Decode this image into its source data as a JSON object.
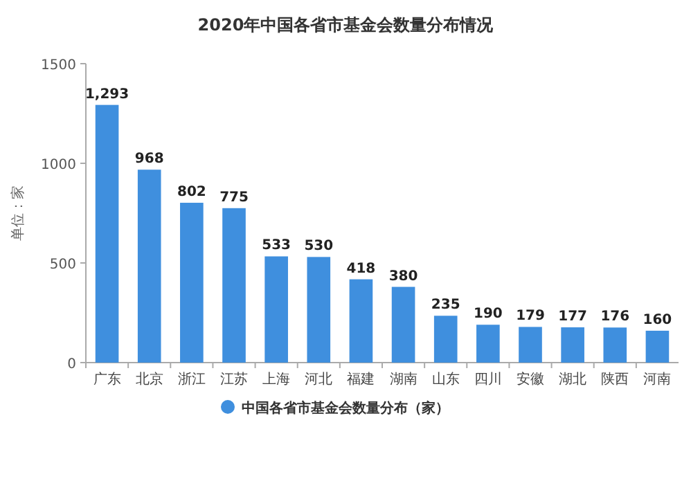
{
  "chart_data": {
    "type": "bar",
    "title": "2020年中国各省市基金会数量分布情况",
    "ylabel": "单位：家",
    "categories": [
      "广东",
      "北京",
      "浙江",
      "江苏",
      "上海",
      "河北",
      "福建",
      "湖南",
      "山东",
      "四川",
      "安徽",
      "湖北",
      "陕西",
      "河南"
    ],
    "series": [
      {
        "name": "中国各省市基金会数量分布（家）",
        "color": "#3f8fde",
        "values": [
          1293,
          968,
          802,
          775,
          533,
          530,
          418,
          380,
          235,
          190,
          179,
          177,
          176,
          160
        ],
        "value_labels": [
          "1,293",
          "968",
          "802",
          "775",
          "533",
          "530",
          "418",
          "380",
          "235",
          "190",
          "179",
          "177",
          "176",
          "160"
        ]
      }
    ],
    "ylim": [
      0,
      1500
    ],
    "yticks": [
      0,
      500,
      1000,
      1500
    ],
    "legend": "bottom"
  }
}
